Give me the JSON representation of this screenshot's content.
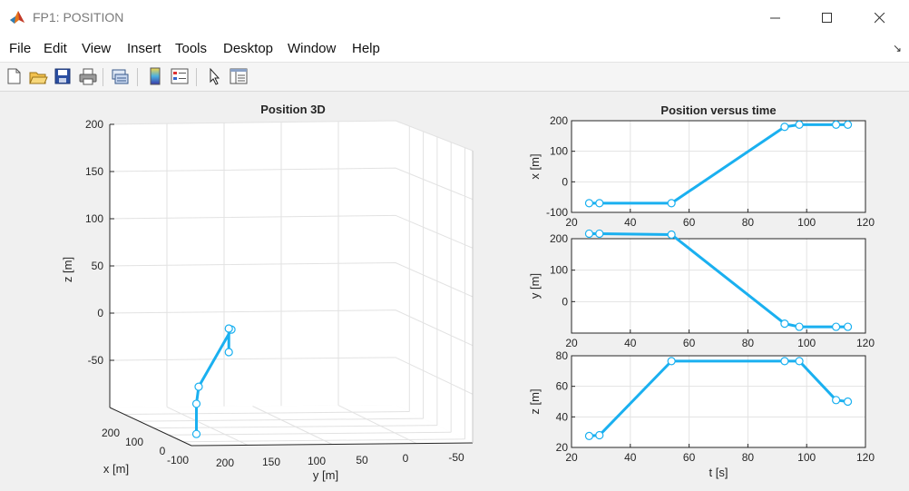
{
  "window": {
    "title": "FP1: POSITION"
  },
  "menu": [
    "File",
    "Edit",
    "View",
    "Insert",
    "Tools",
    "Desktop",
    "Window",
    "Help"
  ],
  "toolbar": {
    "buttons": [
      "new-figure-icon",
      "open-file-icon",
      "save-icon",
      "print-icon",
      "link-icon",
      "colorbar-icon",
      "legend-icon",
      "pointer-icon",
      "property-editor-icon"
    ]
  },
  "chart_data": [
    {
      "type": "line3d",
      "title": "Position 3D",
      "xlabel": "x [m]",
      "ylabel": "y [m]",
      "zlabel": "z [m]",
      "x_ticks": [
        "200",
        "100",
        "0",
        "-100"
      ],
      "y_ticks": [
        "200",
        "150",
        "100",
        "50",
        "0",
        "-50"
      ],
      "z_ticks": [
        "200",
        "150",
        "100",
        "50",
        "0",
        "-50"
      ],
      "zlim": [
        -100,
        200
      ],
      "grid": true,
      "series": [
        {
          "x": [
            -70,
            -70,
            -70,
            180,
            190,
            190
          ],
          "y": [
            215,
            215,
            210,
            -5,
            -5,
            -5
          ],
          "z": [
            -5,
            27,
            45,
            75,
            75,
            50
          ]
        }
      ]
    },
    {
      "type": "line",
      "title": "Position versus time",
      "xlabel": "",
      "ylabel": "x [m]",
      "xlim": [
        20,
        120
      ],
      "ylim": [
        -100,
        200
      ],
      "x_ticks": [
        "20",
        "40",
        "60",
        "80",
        "100",
        "120"
      ],
      "y_ticks": [
        "200",
        "100",
        "0",
        "-100"
      ],
      "grid": true,
      "series": [
        {
          "x": [
            26,
            29.5,
            54,
            92.5,
            97.5,
            110,
            114
          ],
          "y": [
            -70,
            -70,
            -70,
            180,
            187,
            187,
            187
          ]
        }
      ]
    },
    {
      "type": "line",
      "title": "",
      "xlabel": "",
      "ylabel": "y [m]",
      "xlim": [
        20,
        120
      ],
      "ylim": [
        -100,
        200
      ],
      "x_ticks": [
        "20",
        "40",
        "60",
        "80",
        "100",
        "120"
      ],
      "y_ticks": [
        "200",
        "100",
        "0"
      ],
      "grid": true,
      "series": [
        {
          "x": [
            26,
            29.5,
            54,
            92.5,
            97.5,
            110,
            114
          ],
          "y": [
            216,
            216,
            213,
            -70,
            -80,
            -80,
            -80
          ]
        }
      ]
    },
    {
      "type": "line",
      "title": "",
      "xlabel": "t [s]",
      "ylabel": "z [m]",
      "xlim": [
        20,
        120
      ],
      "ylim": [
        20,
        80
      ],
      "x_ticks": [
        "20",
        "40",
        "60",
        "80",
        "100",
        "120"
      ],
      "y_ticks": [
        "80",
        "60",
        "40",
        "20"
      ],
      "grid": true,
      "series": [
        {
          "x": [
            26,
            29.5,
            54,
            92.5,
            97.5,
            110,
            114
          ],
          "y": [
            27.5,
            28,
            76.5,
            76.5,
            76.5,
            51,
            50
          ]
        }
      ]
    }
  ]
}
